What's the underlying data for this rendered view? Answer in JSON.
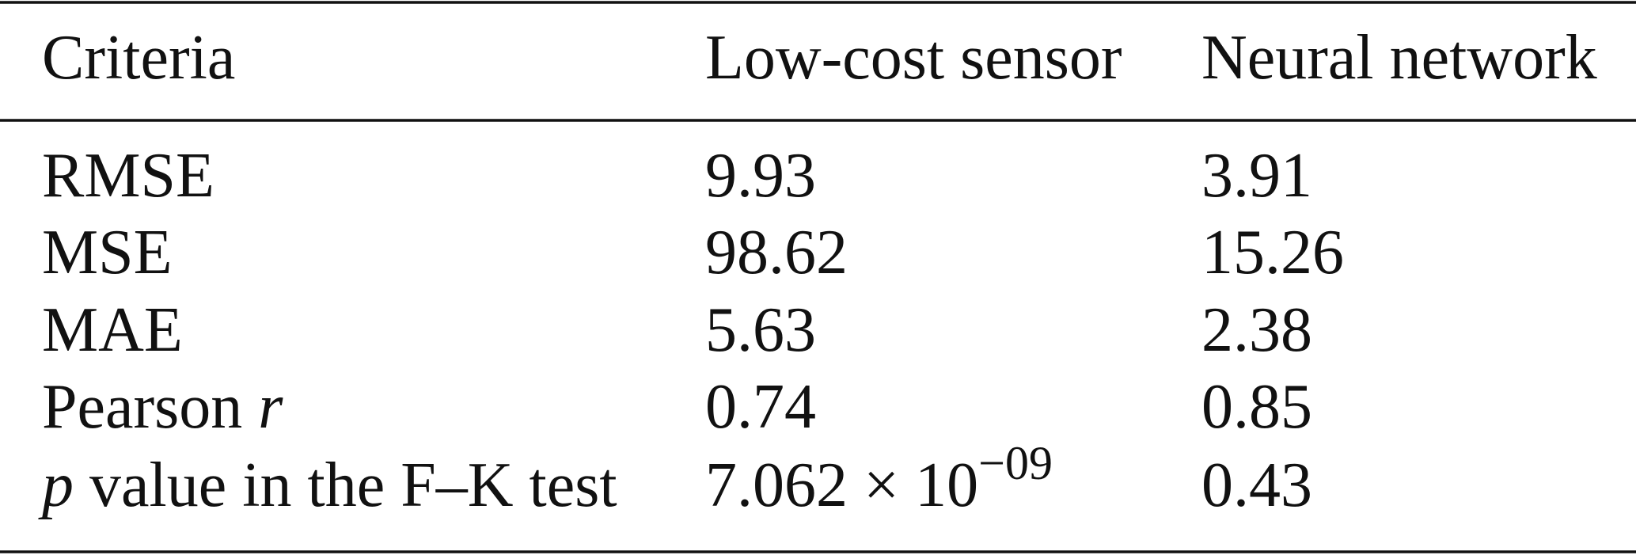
{
  "table": {
    "header": [
      "Criteria",
      "Low-cost sensor",
      "Neural network"
    ],
    "rows": [
      [
        {
          "parts": [
            {
              "text": "RMSE"
            }
          ]
        },
        {
          "parts": [
            {
              "text": "9.93"
            }
          ]
        },
        {
          "parts": [
            {
              "text": "3.91"
            }
          ]
        }
      ],
      [
        {
          "parts": [
            {
              "text": "MSE"
            }
          ]
        },
        {
          "parts": [
            {
              "text": "98.62"
            }
          ]
        },
        {
          "parts": [
            {
              "text": "15.26"
            }
          ]
        }
      ],
      [
        {
          "parts": [
            {
              "text": "MAE"
            }
          ]
        },
        {
          "parts": [
            {
              "text": "5.63"
            }
          ]
        },
        {
          "parts": [
            {
              "text": "2.38"
            }
          ]
        }
      ],
      [
        {
          "parts": [
            {
              "text": "Pearson "
            },
            {
              "text": "r",
              "italic": true
            }
          ]
        },
        {
          "parts": [
            {
              "text": "0.74"
            }
          ]
        },
        {
          "parts": [
            {
              "text": "0.85"
            }
          ]
        }
      ],
      [
        {
          "parts": [
            {
              "text": "p",
              "italic": true
            },
            {
              "text": " value in the F–K test"
            }
          ]
        },
        {
          "parts": [
            {
              "text": "7.062 × 10"
            },
            {
              "text": "−09",
              "superscript": true
            }
          ]
        },
        {
          "parts": [
            {
              "text": "0.43"
            }
          ]
        }
      ]
    ]
  }
}
